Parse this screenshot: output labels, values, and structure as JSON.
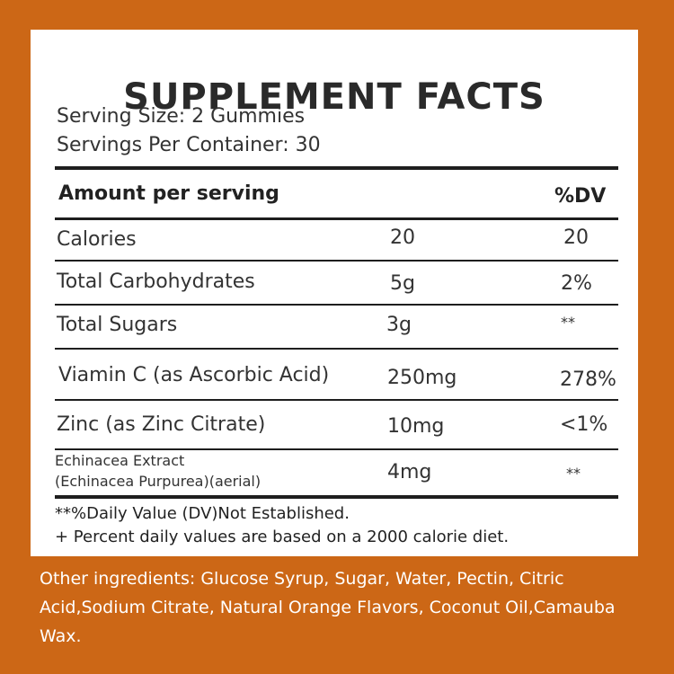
{
  "title": "SUPPLEMENT FACTS",
  "serving_size": "Serving Size: 2 Gummies",
  "servings_per_container": "Servings  Per Container: 30",
  "header": {
    "amount": "Amount per serving",
    "dv": "%DV"
  },
  "rows": [
    {
      "name": "Calories",
      "amount": "20",
      "dv": "20"
    },
    {
      "name": "Total Carbohydrates",
      "amount": "5g",
      "dv": "2%"
    },
    {
      "name": "Total Sugars",
      "amount": "3g",
      "dv": "**"
    },
    {
      "name": "Viamin C (as Ascorbic Acid)",
      "amount": "250mg",
      "dv": "278%"
    },
    {
      "name": "Zinc (as Zinc Citrate)",
      "amount": "10mg",
      "dv": "<1%"
    },
    {
      "name_line1": "Echinacea Extract",
      "name_line2": "(Echinacea Purpurea)(aerial)",
      "amount": "4mg",
      "dv": "**"
    }
  ],
  "footnotes": [
    "**%Daily Value (DV)Not Established.",
    "+ Percent daily values are based on a 2000 calorie diet."
  ],
  "other_ingredients": "Other ingredients: Glucose Syrup, Sugar, Water, Pectin, Citric Acid,Sodium Citrate, Natural Orange Flavors, Coconut Oil,Camauba Wax."
}
